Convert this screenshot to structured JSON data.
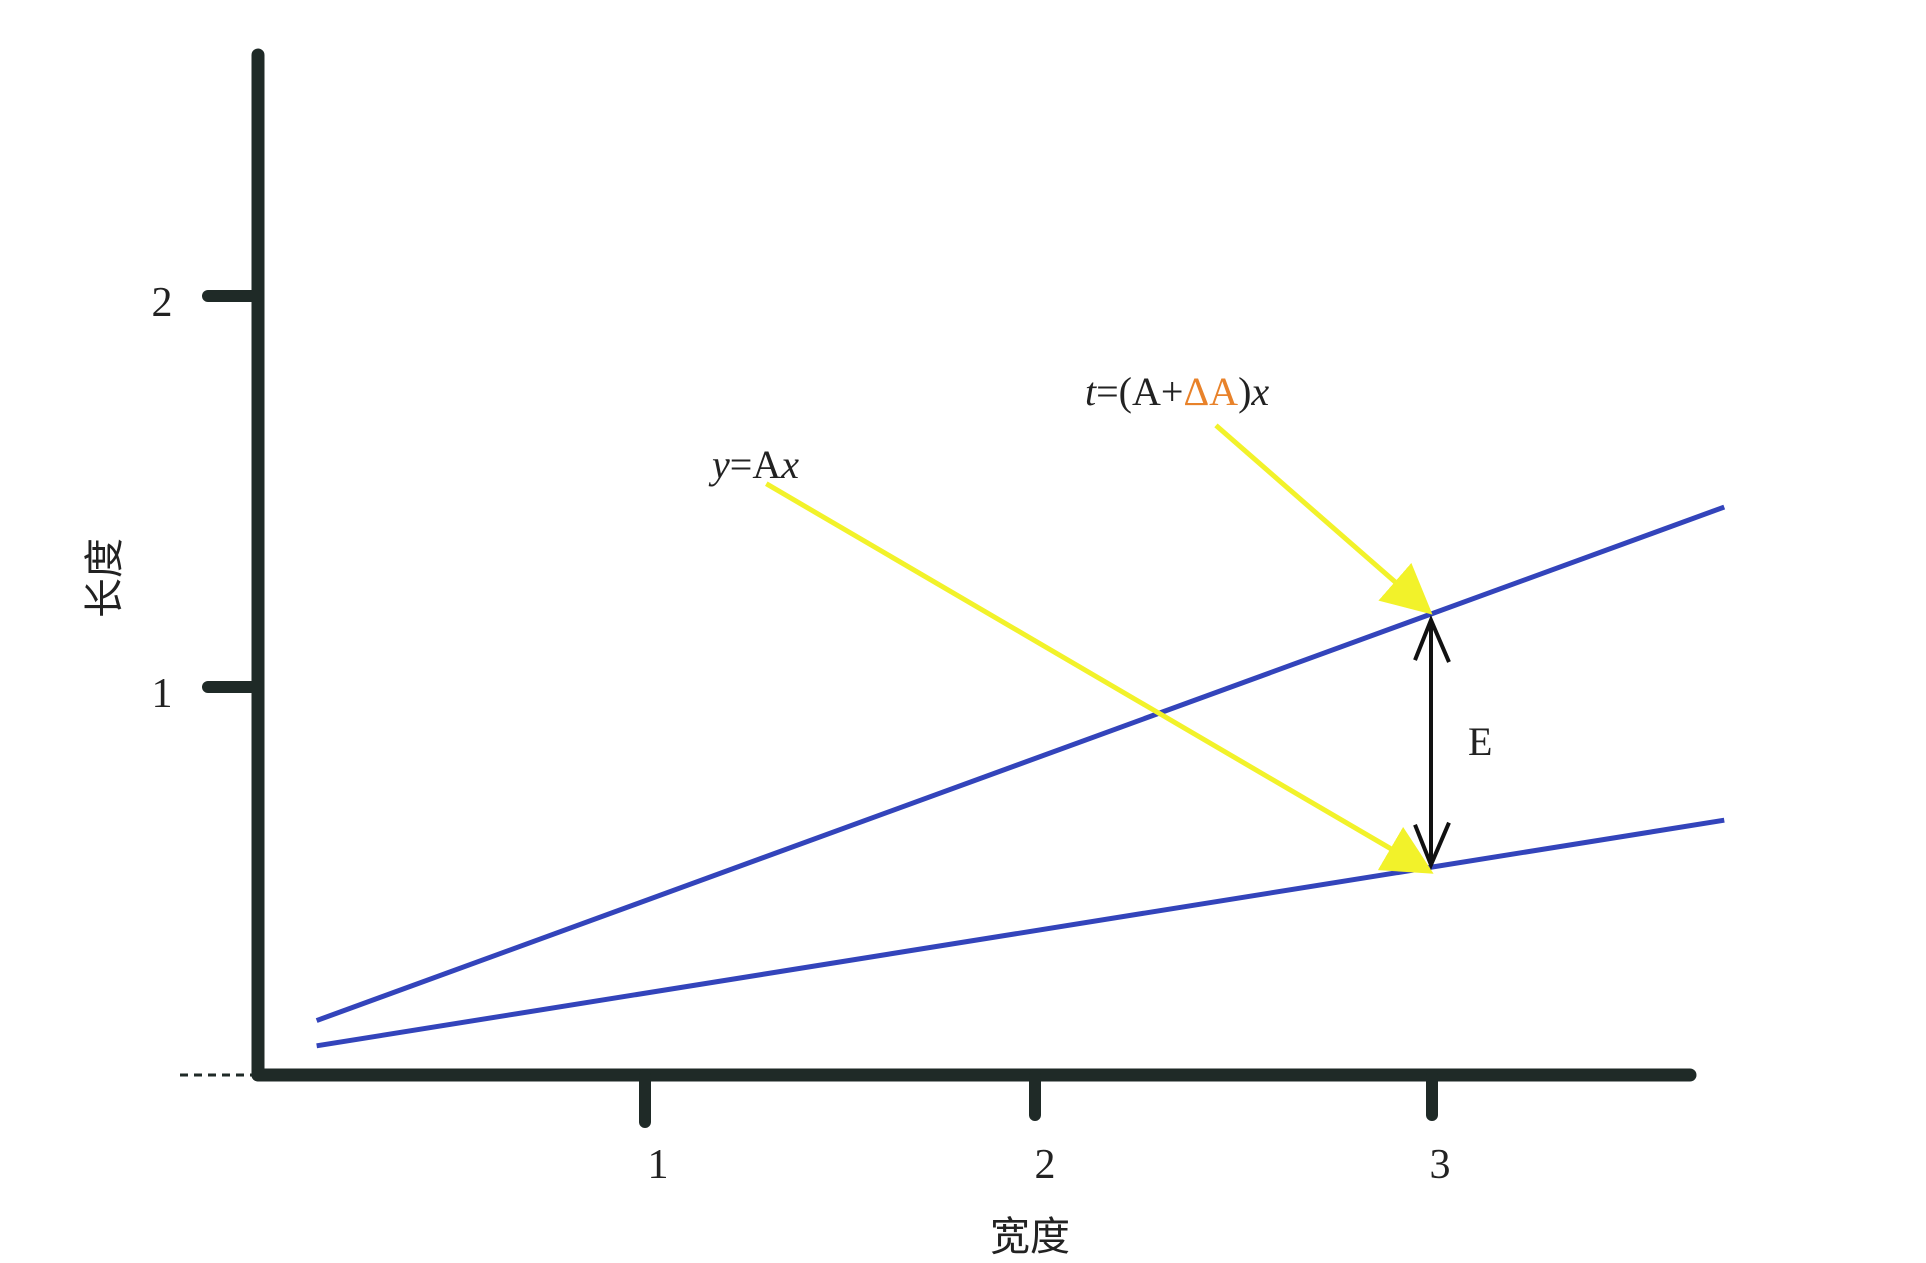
{
  "chart_data": {
    "type": "line",
    "xlabel": "宽度",
    "ylabel": "长度",
    "xlim": [
      -0.2,
      3.75
    ],
    "ylim": [
      0,
      2.7
    ],
    "x_ticks": [
      "1",
      "2",
      "3"
    ],
    "y_ticks": [
      "1",
      "2"
    ],
    "grid": false,
    "series": [
      {
        "name": "y=Ax",
        "color": "#3344bb",
        "x": [
          0.15,
          3.75
        ],
        "y": [
          0.075,
          0.655
        ]
      },
      {
        "name": "t=(A+ΔA)x",
        "color": "#3344bb",
        "x": [
          0.15,
          3.75
        ],
        "y": [
          0.14,
          1.46
        ]
      }
    ],
    "annotations": {
      "label_lower": {
        "text_italic": "y",
        "text_rest": "=A",
        "text_italic2": "x",
        "anchor_x": 1.3,
        "anchor_y": 1.52,
        "target_x": 3.0,
        "target_y": 0.52
      },
      "label_upper": {
        "text_italic": "t",
        "text_open": "=(A+",
        "text_delta": "ΔA",
        "text_close": ")",
        "text_italic2": "x",
        "delta_color": "#e8822a",
        "anchor_x": 2.45,
        "anchor_y": 1.67,
        "target_x": 3.0,
        "target_y": 1.19
      },
      "error": {
        "text": "E",
        "x": 3.0,
        "y_low": 0.52,
        "y_high": 1.19
      }
    },
    "arrow_color": "#f2f22a"
  }
}
